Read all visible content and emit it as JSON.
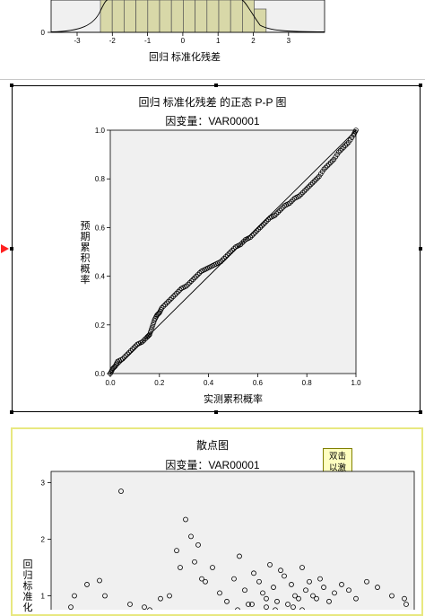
{
  "histogram": {
    "xlabel": "回归 标准化残差",
    "x_ticks": [
      "-3",
      "-2",
      "-1",
      "0",
      "1",
      "2",
      "3"
    ],
    "y_tick": "0"
  },
  "pp_plot": {
    "title": "回归 标准化残差 的正态 P-P 图",
    "subtitle": "因变量：VAR00001",
    "xlabel": "实测累积概率",
    "ylabel": "预期累积概率",
    "x_ticks": [
      "0.0",
      "0.2",
      "0.4",
      "0.6",
      "0.8",
      "1.0"
    ],
    "y_ticks": [
      "0.0",
      "0.2",
      "0.4",
      "0.6",
      "0.8",
      "1.0"
    ]
  },
  "scatter_plot": {
    "title": "散点图",
    "subtitle": "因变量：VAR00001",
    "ylabel": "回归标准化",
    "y_ticks": [
      "3",
      "2",
      "1"
    ],
    "tooltip": "双击以激活"
  },
  "colors": {
    "plot_bg": "#f0f0f0",
    "bar_fill": "#d8d8a8",
    "selected_border": "#e8e880",
    "marker": "#ff2020"
  },
  "chart_data": [
    {
      "type": "bar",
      "title": "",
      "xlabel": "回归 标准化残差",
      "ylabel": "",
      "note": "histogram partially visible (cropped at top)"
    },
    {
      "type": "scatter",
      "title": "回归 标准化残差 的正态 P-P 图",
      "subtitle": "因变量：VAR00001",
      "xlabel": "实测累积概率",
      "ylabel": "预期累积概率",
      "xlim": [
        0,
        1
      ],
      "ylim": [
        0,
        1
      ],
      "series": [
        {
          "x": [
            0.0,
            0.01,
            0.02,
            0.03,
            0.05,
            0.07,
            0.09,
            0.11,
            0.13,
            0.15,
            0.16,
            0.17,
            0.18,
            0.19,
            0.2,
            0.21,
            0.23,
            0.25,
            0.27,
            0.29,
            0.31,
            0.33,
            0.35,
            0.37,
            0.39,
            0.41,
            0.43,
            0.45,
            0.47,
            0.49,
            0.51,
            0.53,
            0.55,
            0.57,
            0.59,
            0.61,
            0.63,
            0.65,
            0.67,
            0.69,
            0.71,
            0.73,
            0.75,
            0.77,
            0.79,
            0.81,
            0.83,
            0.85,
            0.87,
            0.89,
            0.91,
            0.93,
            0.95,
            0.97,
            0.99,
            1.0
          ],
          "y": [
            0.0,
            0.02,
            0.03,
            0.05,
            0.06,
            0.08,
            0.1,
            0.12,
            0.13,
            0.15,
            0.16,
            0.19,
            0.22,
            0.24,
            0.25,
            0.27,
            0.29,
            0.31,
            0.33,
            0.35,
            0.36,
            0.38,
            0.4,
            0.42,
            0.43,
            0.44,
            0.45,
            0.46,
            0.48,
            0.5,
            0.52,
            0.53,
            0.55,
            0.56,
            0.58,
            0.6,
            0.62,
            0.64,
            0.65,
            0.67,
            0.69,
            0.7,
            0.72,
            0.73,
            0.75,
            0.77,
            0.79,
            0.81,
            0.84,
            0.86,
            0.88,
            0.91,
            0.93,
            0.95,
            0.98,
            1.0
          ]
        }
      ],
      "reference_line": [
        [
          0,
          0
        ],
        [
          1,
          1
        ]
      ]
    },
    {
      "type": "scatter",
      "title": "散点图",
      "subtitle": "因变量：VAR00001",
      "ylabel": "回归标准化",
      "ylim": [
        0.5,
        3.2
      ],
      "note": "plot cropped at bottom; x axis not visible",
      "series": [
        {
          "x": [
            0.11,
            0.13,
            0.2,
            0.27,
            0.3,
            0.39,
            0.44,
            0.52,
            0.55,
            0.61,
            0.66,
            0.7,
            0.75,
            0.72,
            0.78,
            0.8,
            0.82,
            0.84,
            0.86,
            0.9,
            0.94,
            0.98,
            1.02,
            1.05,
            1.08,
            1.1,
            1.13,
            1.16,
            1.18,
            1.2,
            1.22,
            1.24,
            1.26,
            1.28,
            1.3,
            1.32,
            1.34,
            1.36,
            1.38,
            1.4,
            1.42,
            1.44,
            1.46,
            1.48,
            1.5,
            1.52,
            1.55,
            1.58,
            1.62,
            1.66,
            1.7,
            1.76,
            1.82,
            1.9,
            1.97,
            1.98,
            0.96,
            1.0,
            1.04,
            1.08,
            1.12,
            1.16,
            1.2,
            1.25,
            1.3,
            1.35,
            1.4,
            1.45
          ],
          "y": [
            0.8,
            1.0,
            1.2,
            1.27,
            1.0,
            2.85,
            0.85,
            0.8,
            0.75,
            0.95,
            1.0,
            1.8,
            2.35,
            1.5,
            2.05,
            1.6,
            1.9,
            1.3,
            1.25,
            1.5,
            1.05,
            0.9,
            1.3,
            1.7,
            1.1,
            0.85,
            1.4,
            1.25,
            1.05,
            0.95,
            1.55,
            1.15,
            0.9,
            1.45,
            1.35,
            0.85,
            1.2,
            1.0,
            0.95,
            1.5,
            1.1,
            1.25,
            1.0,
            0.95,
            1.3,
            1.15,
            0.9,
            1.05,
            1.2,
            1.1,
            0.95,
            1.25,
            1.15,
            1.0,
            0.95,
            0.85,
            0.65,
            0.7,
            0.75,
            0.7,
            0.85,
            0.7,
            0.8,
            0.75,
            0.7,
            0.8,
            0.75,
            0.7
          ]
        }
      ]
    }
  ]
}
